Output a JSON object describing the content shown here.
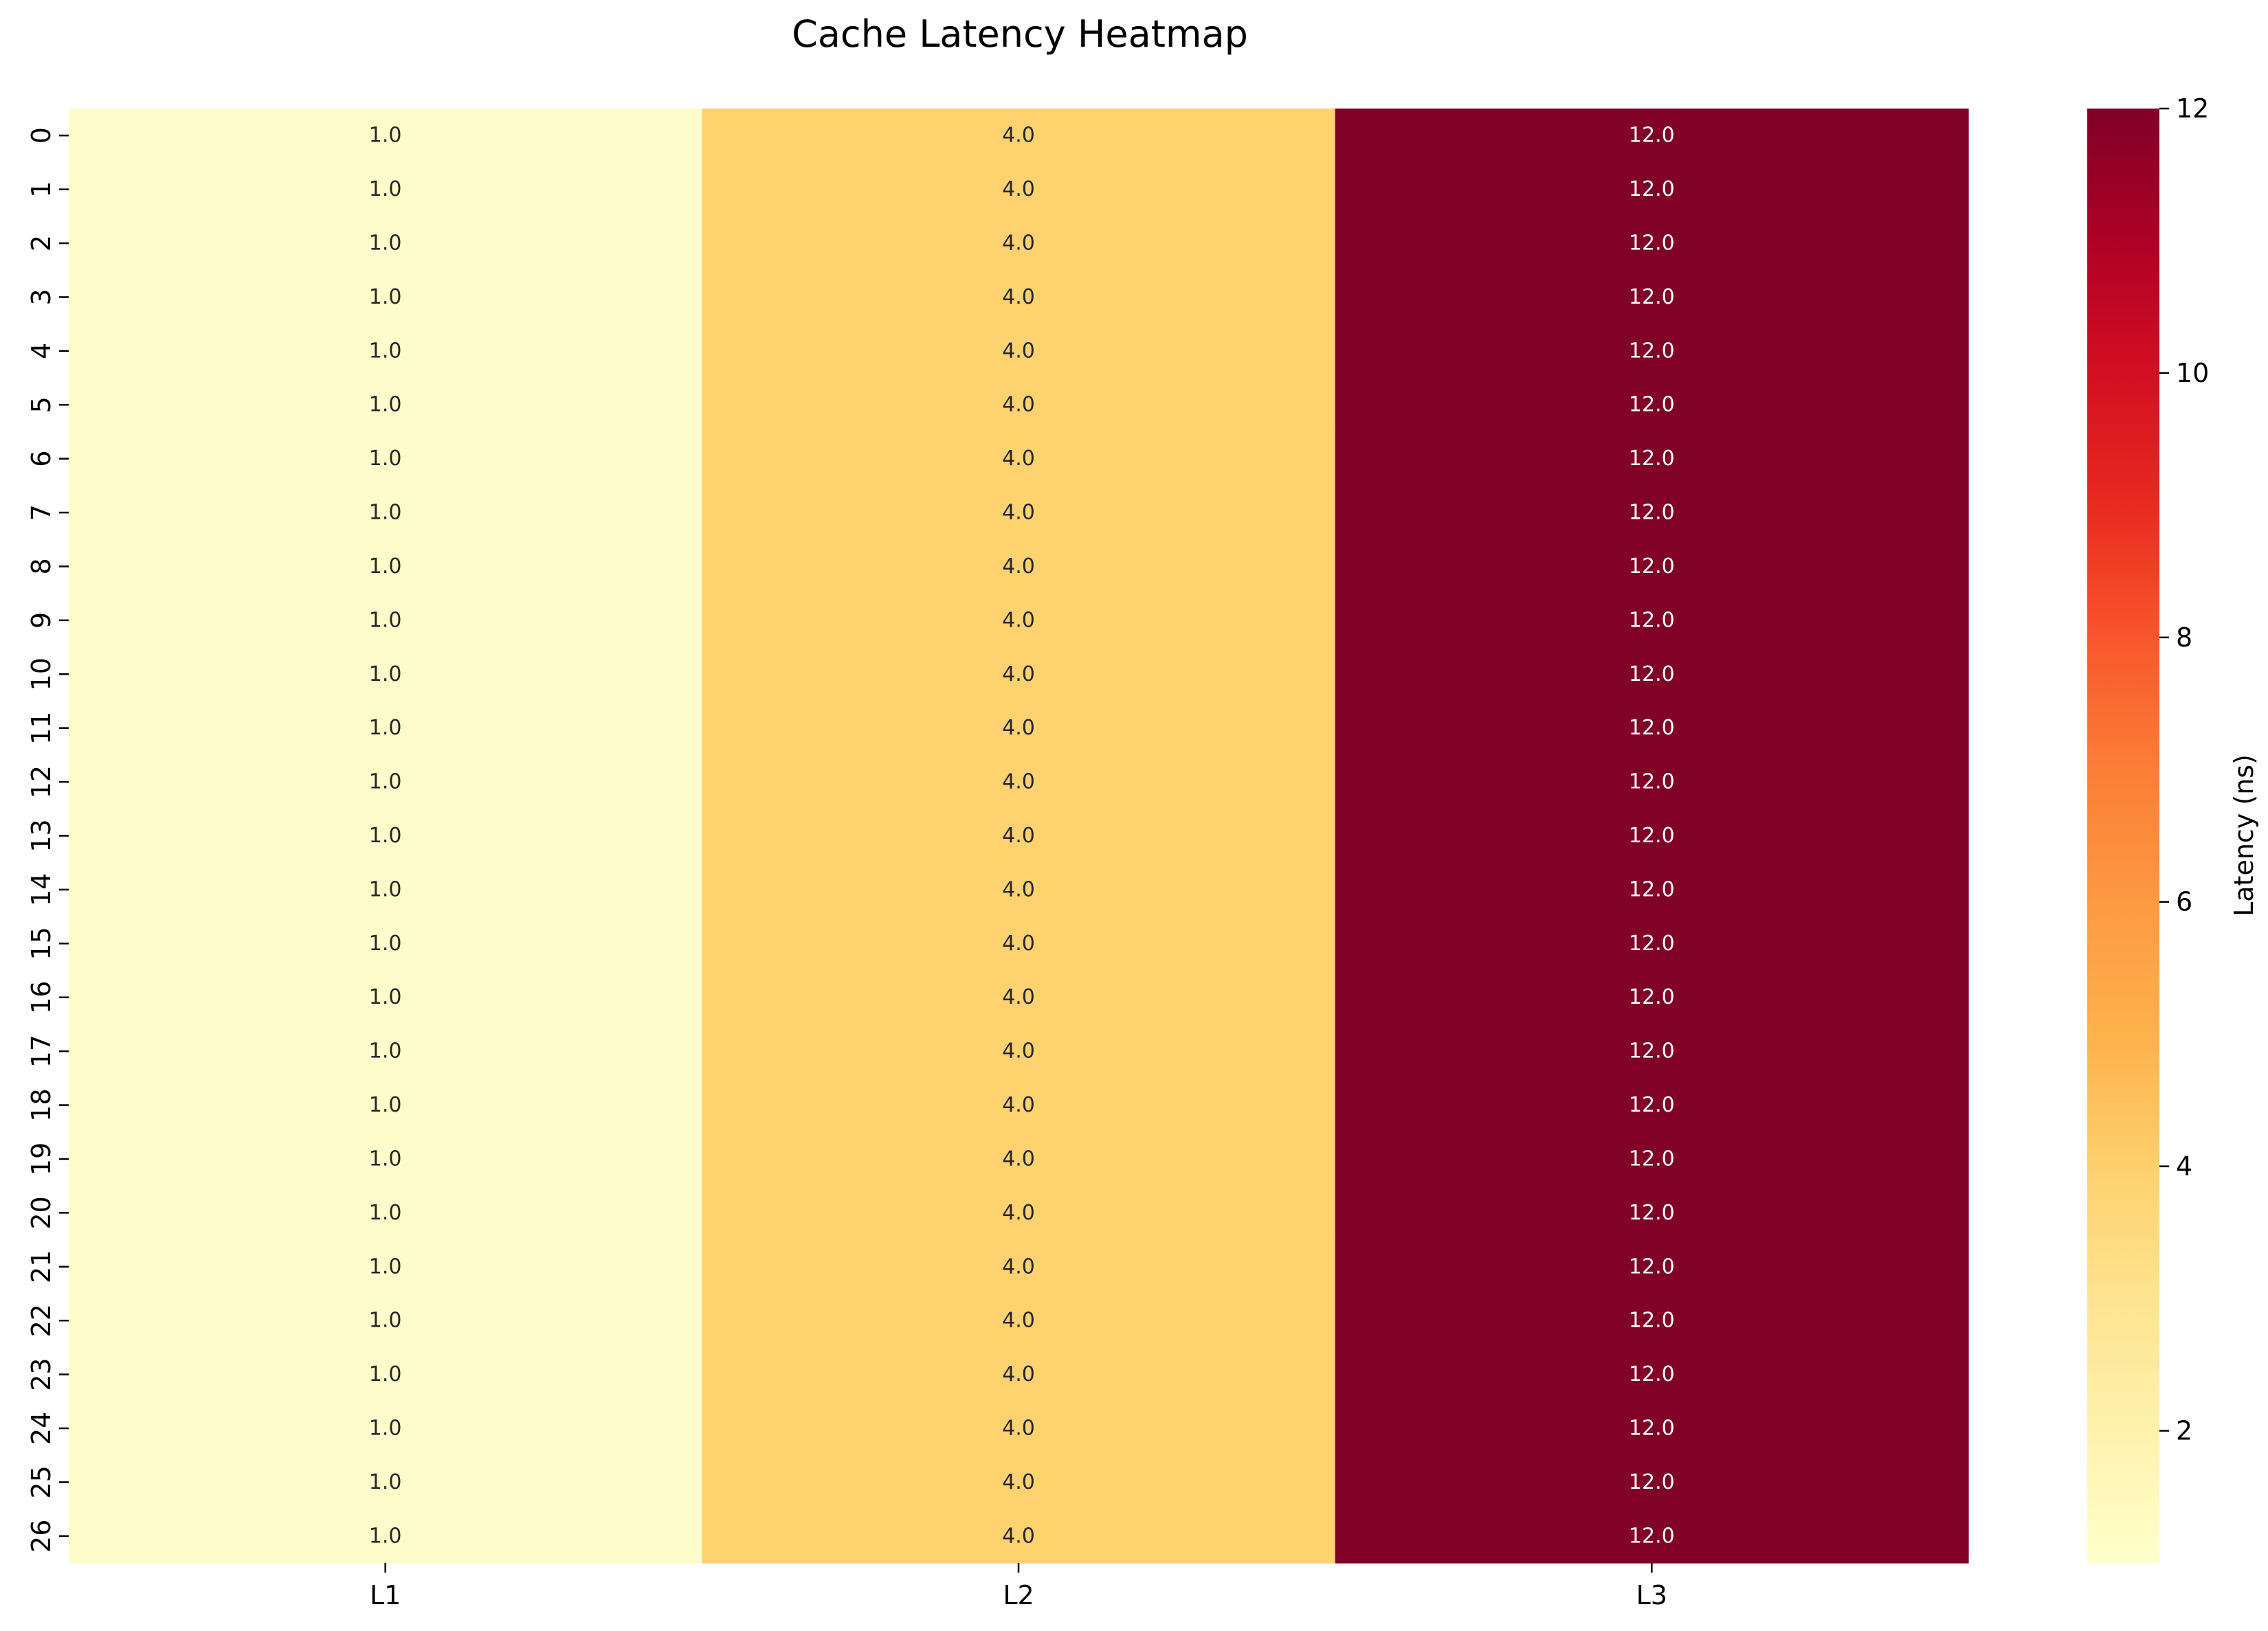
{
  "chart_data": {
    "type": "heatmap",
    "title": "Cache Latency Heatmap",
    "xlabel": "",
    "ylabel": "",
    "x_categories": [
      "L1",
      "L2",
      "L3"
    ],
    "y_categories": [
      "0",
      "1",
      "2",
      "3",
      "4",
      "5",
      "6",
      "7",
      "8",
      "9",
      "10",
      "11",
      "12",
      "13",
      "14",
      "15",
      "16",
      "17",
      "18",
      "19",
      "20",
      "21",
      "22",
      "23",
      "24",
      "25",
      "26"
    ],
    "values": [
      [
        1.0,
        4.0,
        12.0
      ],
      [
        1.0,
        4.0,
        12.0
      ],
      [
        1.0,
        4.0,
        12.0
      ],
      [
        1.0,
        4.0,
        12.0
      ],
      [
        1.0,
        4.0,
        12.0
      ],
      [
        1.0,
        4.0,
        12.0
      ],
      [
        1.0,
        4.0,
        12.0
      ],
      [
        1.0,
        4.0,
        12.0
      ],
      [
        1.0,
        4.0,
        12.0
      ],
      [
        1.0,
        4.0,
        12.0
      ],
      [
        1.0,
        4.0,
        12.0
      ],
      [
        1.0,
        4.0,
        12.0
      ],
      [
        1.0,
        4.0,
        12.0
      ],
      [
        1.0,
        4.0,
        12.0
      ],
      [
        1.0,
        4.0,
        12.0
      ],
      [
        1.0,
        4.0,
        12.0
      ],
      [
        1.0,
        4.0,
        12.0
      ],
      [
        1.0,
        4.0,
        12.0
      ],
      [
        1.0,
        4.0,
        12.0
      ],
      [
        1.0,
        4.0,
        12.0
      ],
      [
        1.0,
        4.0,
        12.0
      ],
      [
        1.0,
        4.0,
        12.0
      ],
      [
        1.0,
        4.0,
        12.0
      ],
      [
        1.0,
        4.0,
        12.0
      ],
      [
        1.0,
        4.0,
        12.0
      ],
      [
        1.0,
        4.0,
        12.0
      ],
      [
        1.0,
        4.0,
        12.0
      ]
    ],
    "annotations": true,
    "colorscale": "YlOrRd",
    "value_range": [
      1,
      12
    ],
    "colorbar": {
      "label": "Latency (ns)",
      "ticks": [
        2,
        4,
        6,
        8,
        10,
        12
      ],
      "placement": "right"
    },
    "colors": {
      "L1": "#fefcca",
      "L2": "#fdd26f",
      "L3": "#800026",
      "annotation_light": "#ffffff",
      "annotation_dark": "#262626"
    }
  }
}
